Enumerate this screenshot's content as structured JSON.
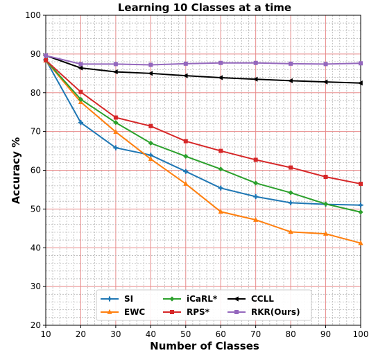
{
  "chart_data": {
    "type": "line",
    "title": "Learning 10 Classes at a time",
    "xlabel": "Number of Classes",
    "ylabel": "Accuracy %",
    "x": [
      10,
      20,
      30,
      40,
      50,
      60,
      70,
      80,
      90,
      100
    ],
    "xlim": [
      10,
      100
    ],
    "ylim": [
      20,
      100
    ],
    "xticks": [
      "10",
      "20",
      "30",
      "40",
      "50",
      "60",
      "70",
      "80",
      "90",
      "100"
    ],
    "yticks": [
      "20",
      "30",
      "40",
      "50",
      "60",
      "70",
      "80",
      "90",
      "100"
    ],
    "grid": true,
    "legend_position": "lower-center",
    "series": [
      {
        "name": "SI",
        "color": "#1f77b4",
        "marker": "plus",
        "values": [
          88.5,
          72.3,
          65.8,
          63.9,
          59.7,
          55.4,
          53.2,
          51.6,
          51.2,
          51.0
        ]
      },
      {
        "name": "EWC",
        "color": "#ff7f0e",
        "marker": "triangle-up",
        "values": [
          88.3,
          77.6,
          69.9,
          62.9,
          56.5,
          49.3,
          47.2,
          44.1,
          43.6,
          41.2
        ]
      },
      {
        "name": "iCaRL*",
        "color": "#2ca02c",
        "marker": "diamond",
        "values": [
          88.4,
          78.3,
          72.3,
          67.0,
          63.6,
          60.3,
          56.7,
          54.2,
          51.3,
          49.2
        ]
      },
      {
        "name": "RPS*",
        "color": "#d62728",
        "marker": "square",
        "values": [
          88.4,
          80.2,
          73.6,
          71.4,
          67.5,
          65.0,
          62.7,
          60.7,
          58.3,
          56.5
        ]
      },
      {
        "name": "CCLL",
        "color": "#000000",
        "marker": "triangle-left",
        "values": [
          89.6,
          86.4,
          85.4,
          85.0,
          84.4,
          83.9,
          83.5,
          83.1,
          82.8,
          82.5
        ]
      },
      {
        "name": "RKR(Ours)",
        "color": "#9467bd",
        "marker": "square",
        "values": [
          89.6,
          87.4,
          87.4,
          87.2,
          87.5,
          87.7,
          87.7,
          87.5,
          87.4,
          87.6
        ]
      }
    ]
  }
}
